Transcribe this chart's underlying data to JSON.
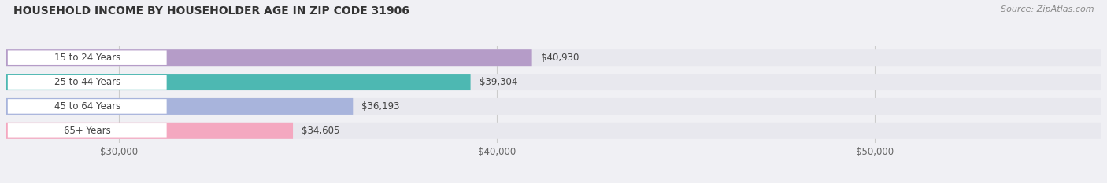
{
  "title": "HOUSEHOLD INCOME BY HOUSEHOLDER AGE IN ZIP CODE 31906",
  "source": "Source: ZipAtlas.com",
  "categories": [
    "15 to 24 Years",
    "25 to 44 Years",
    "45 to 64 Years",
    "65+ Years"
  ],
  "values": [
    40930,
    39304,
    36193,
    34605
  ],
  "bar_colors": [
    "#b59cc8",
    "#4db8b2",
    "#a8b4dc",
    "#f4a8c0"
  ],
  "value_labels": [
    "$40,930",
    "$39,304",
    "$36,193",
    "$34,605"
  ],
  "xmin": 27000,
  "xmax": 56000,
  "xticks": [
    30000,
    40000,
    50000
  ],
  "xtick_labels": [
    "$30,000",
    "$40,000",
    "$50,000"
  ],
  "background_color": "#f0f0f4",
  "bar_background": "#e8e8ee",
  "figsize": [
    14.06,
    2.33
  ],
  "dpi": 100
}
